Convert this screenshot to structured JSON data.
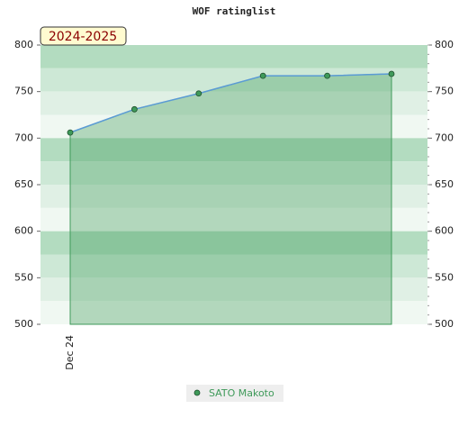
{
  "chart_data": {
    "type": "area-line",
    "title": "WOF ratinglist",
    "annotation": "2024-2025",
    "categories": [
      "Dec 24",
      null,
      null,
      null,
      null,
      null
    ],
    "series": [
      {
        "name": "SATO Makoto",
        "color": "#3f9a5a",
        "line_color": "#5b9bd5",
        "values": [
          706,
          731,
          748,
          767,
          767,
          769
        ]
      }
    ],
    "ylim": [
      500,
      800
    ],
    "yticks": [
      500,
      550,
      600,
      650,
      700,
      750,
      800
    ],
    "y2lim": [
      500,
      800
    ],
    "y2ticks": [
      500,
      550,
      600,
      650,
      700,
      750,
      800
    ]
  }
}
